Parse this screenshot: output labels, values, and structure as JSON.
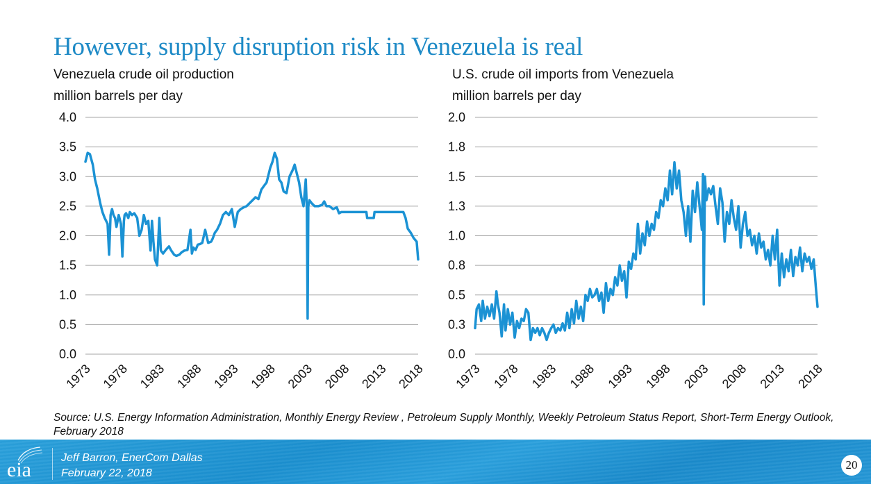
{
  "slide": {
    "title": "However, supply disruption risk in Venezuela is real",
    "source": "Source: U.S. Energy Information Administration, Monthly Energy Review , Petroleum Supply Monthly, Weekly Petroleum Status Report, Short-Term Energy Outlook, February 2018",
    "footer": {
      "logo_text": "eia",
      "presenter": "Jeff Barron, EnerCom Dallas",
      "date": "February 22, 2018",
      "page_number": "20"
    },
    "colors": {
      "title": "#1e8ac6",
      "line": "#1b92d4",
      "grid": "#a6a6a6",
      "footer": "#2196d6"
    }
  },
  "chart_data": [
    {
      "type": "line",
      "title": "Venezuela crude oil production",
      "ylabel": "million barrels per day",
      "xlabel": "",
      "xlim": [
        1973,
        2018
      ],
      "ylim": [
        0,
        4.0
      ],
      "x_ticks": [
        "1973",
        "1978",
        "1983",
        "1988",
        "1993",
        "1998",
        "2003",
        "2008",
        "2013",
        "2018"
      ],
      "y_ticks": [
        "0.0",
        "0.5",
        "1.0",
        "1.5",
        "2.0",
        "2.5",
        "3.0",
        "3.5",
        "4.0"
      ],
      "grid": true,
      "legend": "none",
      "series": [
        {
          "name": "Venezuela crude oil production",
          "x": [
            1973.0,
            1973.3,
            1973.6,
            1974.0,
            1974.3,
            1974.6,
            1975.0,
            1975.3,
            1975.6,
            1976.0,
            1976.2,
            1976.4,
            1976.6,
            1976.8,
            1977.0,
            1977.2,
            1977.5,
            1977.8,
            1978.0,
            1978.2,
            1978.3,
            1978.5,
            1978.8,
            1979.0,
            1979.3,
            1979.6,
            1980.0,
            1980.3,
            1980.6,
            1980.9,
            1981.2,
            1981.5,
            1981.8,
            1982.0,
            1982.2,
            1982.4,
            1982.7,
            1983.0,
            1983.2,
            1983.5,
            1983.8,
            1984.0,
            1984.3,
            1984.6,
            1985.0,
            1985.3,
            1985.7,
            1986.0,
            1986.4,
            1986.8,
            1987.2,
            1987.4,
            1987.6,
            1987.9,
            1988.2,
            1988.5,
            1988.8,
            1989.2,
            1989.6,
            1990.0,
            1990.2,
            1990.5,
            1990.8,
            1991.2,
            1991.6,
            1992.0,
            1992.4,
            1992.8,
            1993.2,
            1993.6,
            1994.0,
            1994.4,
            1994.8,
            1995.2,
            1995.6,
            1996.0,
            1996.4,
            1996.8,
            1997.2,
            1997.5,
            1997.8,
            1998.0,
            1998.3,
            1998.6,
            1998.9,
            1999.2,
            1999.5,
            1999.8,
            2000.2,
            2000.6,
            2001.0,
            2001.3,
            2001.6,
            2001.9,
            2002.2,
            2002.5,
            2002.8,
            2002.95,
            2003.05,
            2003.15,
            2003.3,
            2003.6,
            2004.0,
            2004.5,
            2005.0,
            2005.3,
            2005.6,
            2006.0,
            2006.5,
            2007.0,
            2007.3,
            2007.6,
            2008.0,
            2009.0,
            2010.0,
            2011.0,
            2011.1,
            2011.5,
            2012.0,
            2012.1,
            2013.0,
            2014.0,
            2015.0,
            2016.0,
            2016.3,
            2016.6,
            2017.0,
            2017.4,
            2017.8,
            2018.0
          ],
          "y": [
            3.25,
            3.4,
            3.38,
            3.2,
            2.95,
            2.8,
            2.55,
            2.4,
            2.3,
            2.2,
            1.68,
            2.35,
            2.45,
            2.35,
            2.3,
            2.15,
            2.35,
            2.2,
            1.65,
            2.25,
            2.35,
            2.38,
            2.3,
            2.4,
            2.35,
            2.38,
            2.3,
            2.0,
            2.1,
            2.35,
            2.2,
            2.25,
            1.75,
            2.25,
            1.9,
            1.6,
            1.5,
            2.3,
            1.75,
            1.7,
            1.75,
            1.78,
            1.82,
            1.75,
            1.68,
            1.66,
            1.68,
            1.72,
            1.75,
            1.76,
            2.1,
            1.7,
            1.8,
            1.76,
            1.85,
            1.86,
            1.88,
            2.1,
            1.88,
            1.9,
            1.95,
            2.05,
            2.1,
            2.2,
            2.35,
            2.4,
            2.35,
            2.45,
            2.15,
            2.4,
            2.45,
            2.48,
            2.5,
            2.55,
            2.6,
            2.65,
            2.62,
            2.78,
            2.85,
            2.9,
            3.05,
            3.15,
            3.25,
            3.4,
            3.3,
            2.95,
            2.9,
            2.75,
            2.72,
            3.0,
            3.1,
            3.2,
            3.05,
            2.9,
            2.65,
            2.5,
            2.95,
            2.45,
            0.6,
            2.5,
            2.6,
            2.55,
            2.5,
            2.5,
            2.52,
            2.58,
            2.5,
            2.5,
            2.45,
            2.48,
            2.38,
            2.4,
            2.4,
            2.4,
            2.4,
            2.4,
            2.3,
            2.3,
            2.3,
            2.4,
            2.4,
            2.4,
            2.4,
            2.4,
            2.3,
            2.12,
            2.05,
            1.96,
            1.9,
            1.6
          ]
        }
      ]
    },
    {
      "type": "line",
      "title": "U.S. crude oil imports from Venezuela",
      "ylabel": "million barrels per day",
      "xlabel": "",
      "xlim": [
        1973,
        2018
      ],
      "ylim": [
        0,
        2.0
      ],
      "x_ticks": [
        "1973",
        "1978",
        "1983",
        "1988",
        "1993",
        "1998",
        "2003",
        "2008",
        "2013",
        "2018"
      ],
      "y_ticks": [
        "0.0",
        "0.3",
        "0.5",
        "0.8",
        "1.0",
        "1.3",
        "1.5",
        "1.8",
        "2.0"
      ],
      "grid": true,
      "legend": "none",
      "series": [
        {
          "name": "U.S. crude oil imports from Venezuela",
          "x": [
            1973.0,
            1973.2,
            1973.5,
            1973.8,
            1974.0,
            1974.3,
            1974.6,
            1974.9,
            1975.2,
            1975.5,
            1975.8,
            1976.0,
            1976.2,
            1976.5,
            1976.8,
            1977.0,
            1977.3,
            1977.6,
            1977.9,
            1978.2,
            1978.5,
            1978.8,
            1979.1,
            1979.4,
            1979.7,
            1980.0,
            1980.3,
            1980.6,
            1980.9,
            1981.2,
            1981.5,
            1981.8,
            1982.1,
            1982.4,
            1982.7,
            1983.0,
            1983.3,
            1983.6,
            1983.9,
            1984.2,
            1984.5,
            1984.8,
            1985.1,
            1985.4,
            1985.7,
            1986.0,
            1986.3,
            1986.6,
            1986.9,
            1987.2,
            1987.5,
            1987.8,
            1988.1,
            1988.4,
            1988.7,
            1989.0,
            1989.3,
            1989.6,
            1989.9,
            1990.2,
            1990.5,
            1990.8,
            1991.1,
            1991.4,
            1991.7,
            1992.0,
            1992.3,
            1992.6,
            1992.9,
            1993.2,
            1993.5,
            1993.8,
            1994.1,
            1994.4,
            1994.7,
            1995.0,
            1995.3,
            1995.6,
            1995.9,
            1996.2,
            1996.5,
            1996.8,
            1997.1,
            1997.4,
            1997.7,
            1998.0,
            1998.3,
            1998.6,
            1998.9,
            1999.2,
            1999.5,
            1999.8,
            2000.1,
            2000.4,
            2000.7,
            2001.0,
            2001.3,
            2001.6,
            2001.9,
            2002.2,
            2002.5,
            2002.8,
            2002.95,
            2003.05,
            2003.2,
            2003.4,
            2003.7,
            2004.0,
            2004.3,
            2004.6,
            2004.9,
            2005.2,
            2005.5,
            2005.8,
            2006.1,
            2006.4,
            2006.7,
            2007.0,
            2007.3,
            2007.6,
            2007.9,
            2008.2,
            2008.5,
            2008.8,
            2009.1,
            2009.4,
            2009.7,
            2010.0,
            2010.3,
            2010.6,
            2010.9,
            2011.2,
            2011.5,
            2011.8,
            2012.1,
            2012.4,
            2012.7,
            2013.0,
            2013.3,
            2013.6,
            2013.9,
            2014.2,
            2014.5,
            2014.8,
            2015.1,
            2015.4,
            2015.7,
            2016.0,
            2016.3,
            2016.6,
            2016.9,
            2017.2,
            2017.5,
            2017.8,
            2018.0
          ],
          "y": [
            0.22,
            0.38,
            0.42,
            0.28,
            0.45,
            0.3,
            0.4,
            0.32,
            0.42,
            0.3,
            0.53,
            0.42,
            0.35,
            0.15,
            0.42,
            0.2,
            0.38,
            0.25,
            0.35,
            0.14,
            0.28,
            0.22,
            0.3,
            0.28,
            0.38,
            0.35,
            0.12,
            0.22,
            0.18,
            0.22,
            0.16,
            0.22,
            0.18,
            0.12,
            0.18,
            0.22,
            0.25,
            0.18,
            0.22,
            0.2,
            0.26,
            0.2,
            0.35,
            0.22,
            0.38,
            0.26,
            0.45,
            0.3,
            0.4,
            0.28,
            0.5,
            0.45,
            0.55,
            0.48,
            0.5,
            0.55,
            0.45,
            0.52,
            0.35,
            0.6,
            0.45,
            0.55,
            0.5,
            0.65,
            0.58,
            0.75,
            0.62,
            0.7,
            0.48,
            0.78,
            0.72,
            0.85,
            0.8,
            1.1,
            0.85,
            1.02,
            0.92,
            1.12,
            1.0,
            1.1,
            1.05,
            1.2,
            1.15,
            1.3,
            1.25,
            1.4,
            1.3,
            1.55,
            1.35,
            1.62,
            1.4,
            1.55,
            1.3,
            1.2,
            1.0,
            1.25,
            0.95,
            1.38,
            1.2,
            1.45,
            1.25,
            1.05,
            1.52,
            0.42,
            1.5,
            1.3,
            1.4,
            1.35,
            1.42,
            1.25,
            1.1,
            1.4,
            1.28,
            0.95,
            1.2,
            1.1,
            1.3,
            1.15,
            1.05,
            1.25,
            0.9,
            1.1,
            1.2,
            1.0,
            1.05,
            0.92,
            1.0,
            0.85,
            1.02,
            0.9,
            0.95,
            0.8,
            0.88,
            0.75,
            1.0,
            0.8,
            1.05,
            0.58,
            0.85,
            0.65,
            0.8,
            0.7,
            0.88,
            0.66,
            0.82,
            0.75,
            0.9,
            0.7,
            0.85,
            0.78,
            0.82,
            0.72,
            0.8,
            0.55,
            0.4
          ]
        }
      ]
    }
  ]
}
